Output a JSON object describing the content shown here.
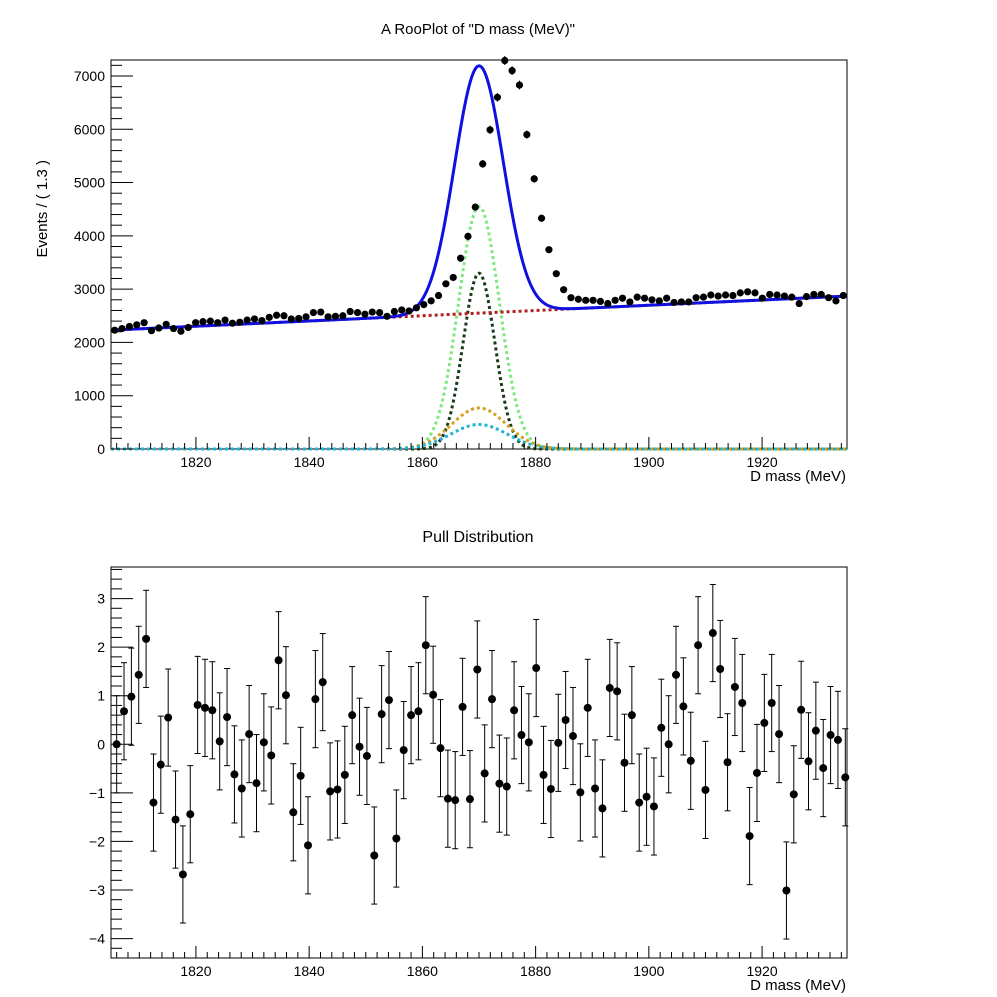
{
  "chart_data": [
    {
      "type": "line",
      "title": "A RooPlot of \"D mass (MeV)\"",
      "xlabel": "D mass (MeV)",
      "ylabel": "Events / ( 1.3 )",
      "xlim": [
        1805,
        1935
      ],
      "ylim": [
        0,
        7300
      ],
      "x_ticks": [
        1820,
        1840,
        1860,
        1880,
        1900,
        1920
      ],
      "y_ticks": [
        0,
        1000,
        2000,
        3000,
        4000,
        5000,
        6000,
        7000
      ],
      "grid": false,
      "legend": "none",
      "data_points": {
        "name": "",
        "x_start": 1805.65,
        "bin_width": 1.3,
        "values": [
          2230,
          2260,
          2300,
          2330,
          2370,
          2220,
          2270,
          2340,
          2260,
          2210,
          2280,
          2370,
          2390,
          2400,
          2370,
          2420,
          2360,
          2380,
          2420,
          2440,
          2410,
          2470,
          2510,
          2500,
          2440,
          2450,
          2480,
          2560,
          2570,
          2480,
          2490,
          2500,
          2580,
          2560,
          2530,
          2570,
          2560,
          2490,
          2580,
          2610,
          2590,
          2650,
          2710,
          2780,
          2880,
          3100,
          3220,
          3580,
          3990,
          4540,
          5350,
          5990,
          6600,
          7290,
          7100,
          6830,
          5900,
          5070,
          4330,
          3740,
          3290,
          2990,
          2840,
          2810,
          2790,
          2790,
          2770,
          2730,
          2790,
          2830,
          2760,
          2850,
          2830,
          2800,
          2780,
          2830,
          2750,
          2760,
          2760,
          2840,
          2850,
          2890,
          2870,
          2890,
          2880,
          2930,
          2950,
          2930,
          2830,
          2900,
          2890,
          2870,
          2850,
          2730,
          2860,
          2900,
          2900,
          2840,
          2780,
          2880,
          2890,
          2860,
          2880,
          2870,
          2870
        ]
      },
      "series": [
        {
          "name": "",
          "color": "#1010e0",
          "style": "solid",
          "kind": "total"
        },
        {
          "name": "",
          "color": "#b02020",
          "style": "dotted",
          "kind": "background"
        },
        {
          "name": "",
          "color": "#7ee87e",
          "style": "dotted",
          "kind": "signal",
          "amplitude": 4550,
          "mean": 1870,
          "sigma": 3.6
        },
        {
          "name": "",
          "color": "#1a3a1a",
          "style": "dotted",
          "kind": "signal",
          "amplitude": 3300,
          "mean": 1870,
          "sigma": 2.8
        },
        {
          "name": "",
          "color": "#d4a020",
          "style": "dotted",
          "kind": "signal",
          "amplitude": 770,
          "mean": 1870,
          "sigma": 4.8
        },
        {
          "name": "",
          "color": "#20b4d4",
          "style": "dotted",
          "kind": "signal",
          "amplitude": 460,
          "mean": 1870,
          "sigma": 5.0
        }
      ],
      "background_line": {
        "y_at_1805": 2230,
        "y_at_1935": 2870
      }
    },
    {
      "type": "scatter",
      "title": "Pull Distribution",
      "xlabel": "D mass (MeV)",
      "ylabel": "",
      "xlim": [
        1805,
        1935
      ],
      "ylim": [
        -4.4,
        3.65
      ],
      "x_ticks": [
        1820,
        1840,
        1860,
        1880,
        1900,
        1920
      ],
      "y_ticks": [
        -4,
        -3,
        -2,
        -1,
        0,
        1,
        2,
        3
      ],
      "grid": false,
      "legend": "none",
      "error": 1,
      "x_start": 1806.0,
      "bin_width": 1.3,
      "values": [
        0.0,
        0.68,
        0.98,
        1.43,
        2.17,
        -1.2,
        -0.42,
        0.55,
        -1.55,
        -2.68,
        -1.44,
        0.81,
        0.75,
        0.7,
        0.06,
        0.56,
        -0.62,
        -0.91,
        0.21,
        -0.8,
        0.04,
        -0.23,
        1.73,
        1.01,
        -1.4,
        -0.65,
        -2.08,
        0.93,
        1.28,
        -0.97,
        -0.93,
        -0.63,
        0.6,
        -0.05,
        -0.24,
        -2.29,
        0.62,
        0.91,
        -1.94,
        -0.12,
        0.6,
        0.68,
        2.04,
        1.02,
        -0.08,
        -1.12,
        -1.15,
        0.77,
        -1.13,
        1.54,
        -0.6,
        0.93,
        -0.81,
        -0.87,
        0.7,
        0.19,
        0.04,
        1.57,
        -0.63,
        -0.92,
        0.03,
        0.5,
        0.17,
        -0.99,
        0.75,
        -0.91,
        -1.32,
        1.16,
        1.09,
        -0.38,
        0.6,
        -1.2,
        -1.08,
        -1.28,
        0.34,
        0.0,
        1.43,
        0.78,
        -0.34,
        2.04,
        -0.94,
        2.29,
        1.55,
        -0.37,
        1.18,
        0.85,
        -1.89,
        -0.59,
        0.44,
        0.85,
        0.21,
        -3.01,
        -1.03,
        0.71,
        -0.35,
        0.28,
        -0.49,
        0.19,
        0.09,
        -0.68
      ]
    }
  ]
}
